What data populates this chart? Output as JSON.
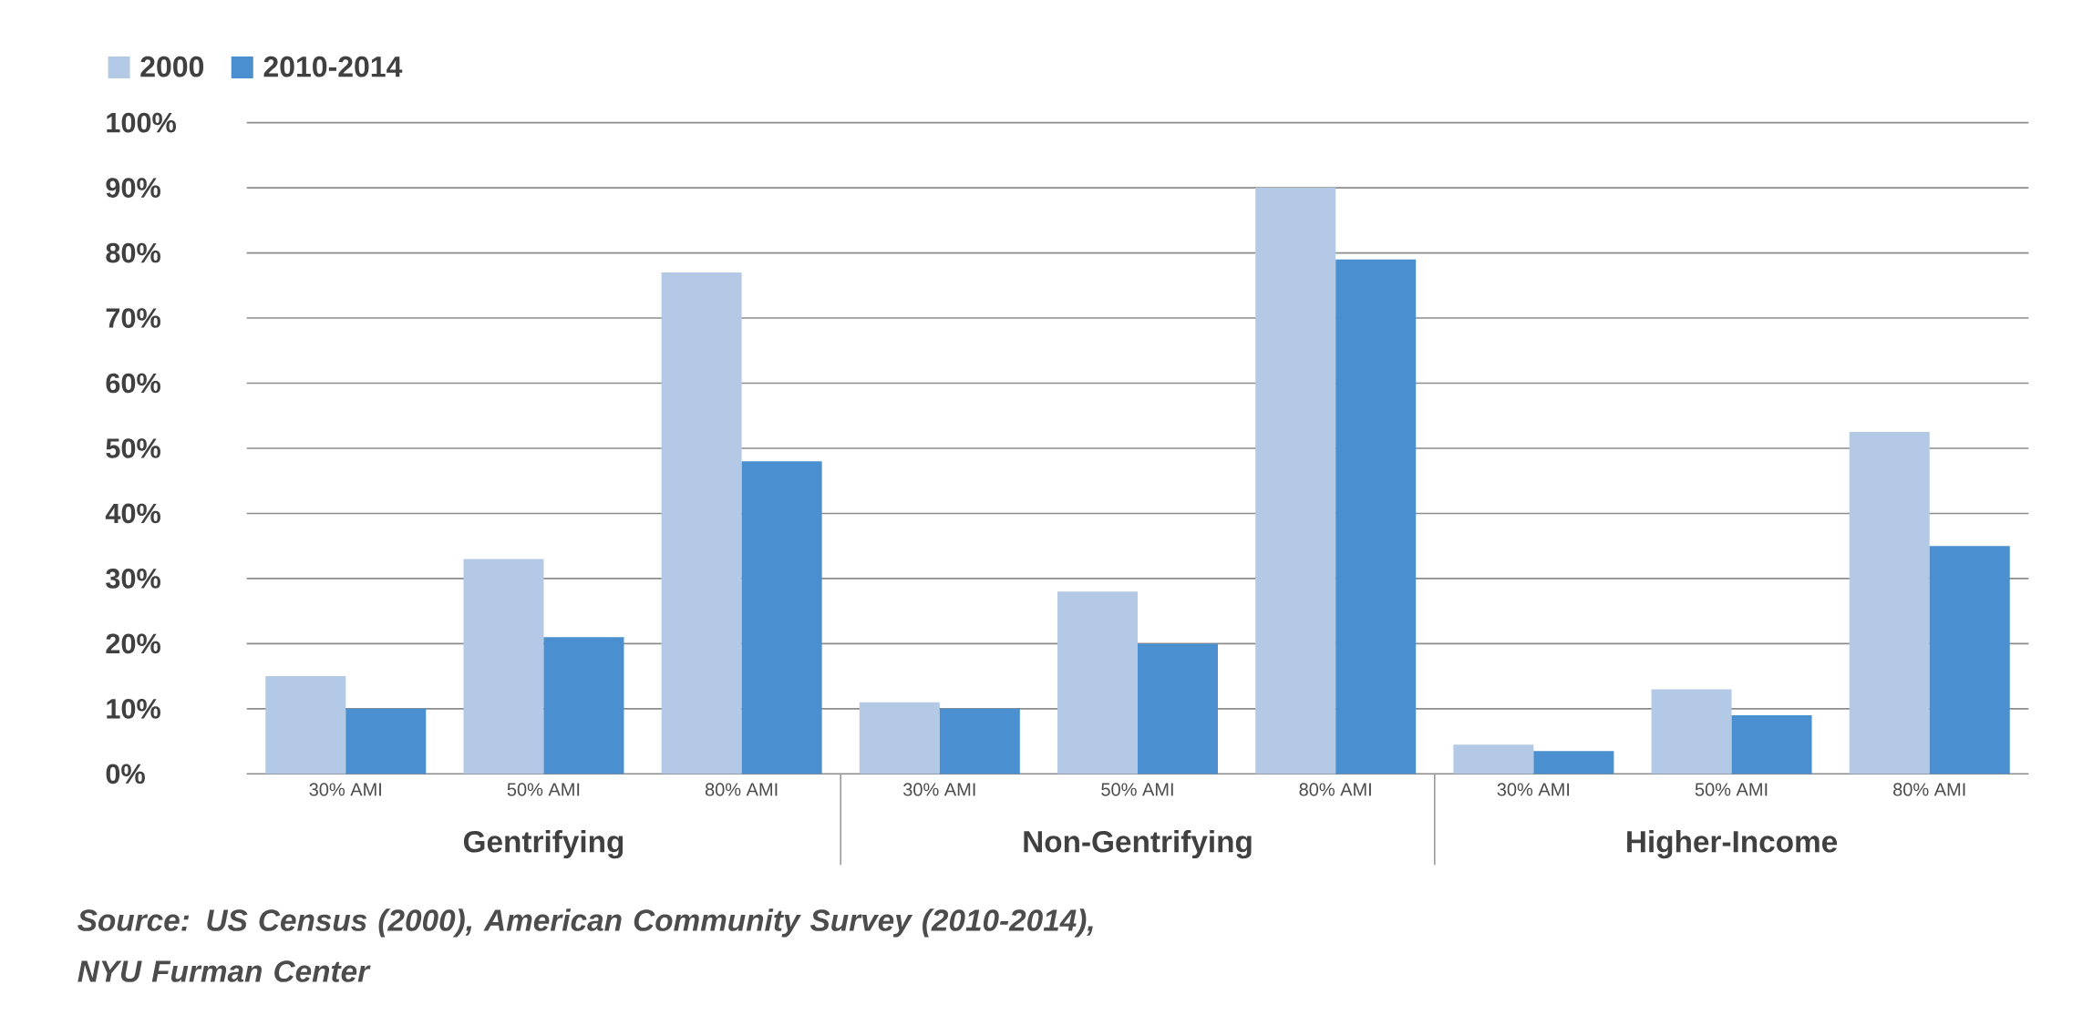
{
  "chart_data": {
    "type": "bar",
    "categories": [
      "30% AMI",
      "50% AMI",
      "80% AMI",
      "30%  AMI",
      "50% AMI",
      "80% AMI",
      "30%  AMI",
      "50% AMI",
      "80% AMI"
    ],
    "series": [
      {
        "name": "2000",
        "color": "#b4c9e6",
        "values": [
          15,
          33,
          77,
          11,
          28,
          90,
          4.5,
          13,
          52.5
        ]
      },
      {
        "name": "2010-2014",
        "color": "#4a8fcf",
        "values": [
          10,
          21,
          48,
          10,
          20,
          79,
          3.5,
          9,
          35
        ]
      }
    ],
    "ylim": [
      0,
      100
    ],
    "yticks": [
      {
        "value": 0,
        "label": "0%"
      },
      {
        "value": 10,
        "label": "10%"
      },
      {
        "value": 20,
        "label": "20%"
      },
      {
        "value": 30,
        "label": "30%"
      },
      {
        "value": 40,
        "label": "40%"
      },
      {
        "value": 50,
        "label": "50%"
      },
      {
        "value": 60,
        "label": "60%"
      },
      {
        "value": 70,
        "label": "70%"
      },
      {
        "value": 80,
        "label": "80%"
      },
      {
        "value": 90,
        "label": "90%"
      },
      {
        "value": 100,
        "label": "100%"
      }
    ],
    "grid": "y",
    "legend": "top left",
    "annotations": [
      "Gentrifying",
      "Non-Gentrifying",
      "Higher-Income",
      "Source: US Census (2000), American Community Survey (2010-2014), NYU Furman Center"
    ]
  }
}
